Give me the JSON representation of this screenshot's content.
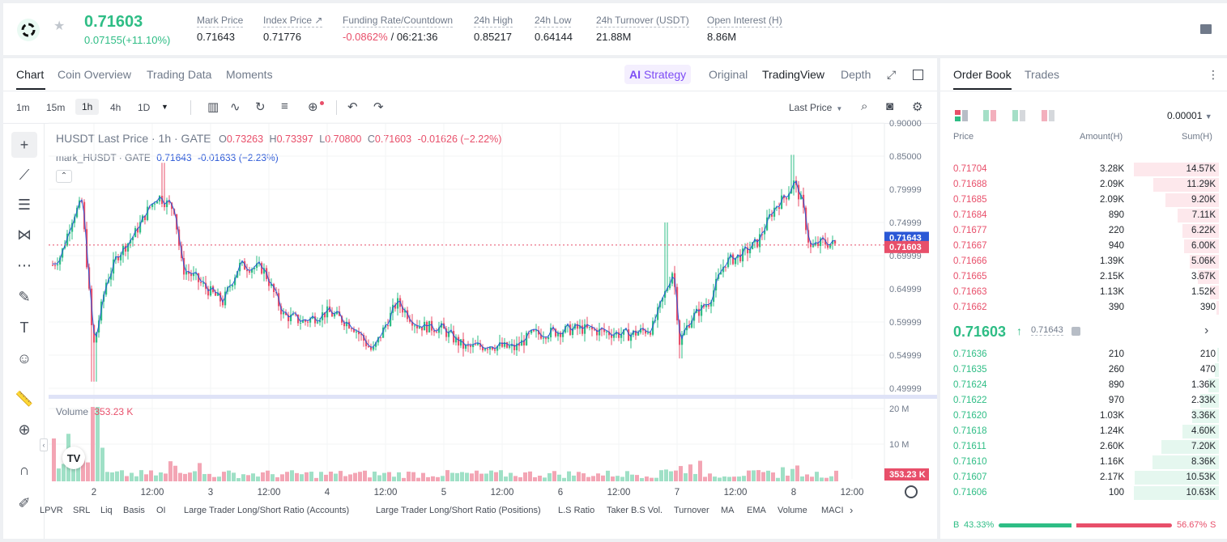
{
  "header": {
    "price": "0.71603",
    "change": "0.07155(+11.10%)",
    "stats": [
      {
        "label": "Mark Price",
        "value": "0.71643"
      },
      {
        "label": "Index Price ↗",
        "value": "0.71776"
      },
      {
        "label": "Funding Rate/Countdown",
        "value": "-0.0862%",
        "value2": "/ 06:21:36"
      },
      {
        "label": "24h High",
        "value": "0.85217"
      },
      {
        "label": "24h Low",
        "value": "0.64144"
      },
      {
        "label": "24h Turnover (USDT)",
        "value": "21.88M"
      },
      {
        "label": "Open Interest (H)",
        "value": "8.86M"
      }
    ]
  },
  "chart_tabs": {
    "left": [
      "Chart",
      "Coin Overview",
      "Trading Data",
      "Moments"
    ],
    "strategy": "Strategy",
    "right": [
      "Original",
      "TradingView",
      "Depth"
    ]
  },
  "toolbar": {
    "intervals": [
      "1m",
      "15m",
      "1h",
      "4h",
      "1D"
    ],
    "last_price": "Last Price"
  },
  "legend": {
    "line1_prefix": "HUSDT Last Price · 1h · GATE",
    "O": "0.73263",
    "H": "0.73397",
    "L": "0.70800",
    "C": "0.71603",
    "chg": "-0.01626 (−2.22%)",
    "line2_prefix": "mark_HUSDT · GATE",
    "mark_val": "0.71643",
    "mark_chg": "-0.01633 (−2.23%)"
  },
  "price_axis": [
    "0.90000",
    "0.85000",
    "0.79999",
    "0.74999",
    "0.69999",
    "0.64999",
    "0.59999",
    "0.54999",
    "0.49999"
  ],
  "price_tags": {
    "mark": "0.71643",
    "last": "0.71603"
  },
  "volume": {
    "label": "Volume",
    "value": "353.23 K",
    "axis": [
      "20 M",
      "10 M"
    ],
    "tag": "353.23 K"
  },
  "time_axis": [
    "2",
    "12:00",
    "3",
    "12:00",
    "4",
    "12:00",
    "5",
    "12:00",
    "6",
    "12:00",
    "7",
    "12:00",
    "8",
    "12:00"
  ],
  "bottom_indicators": [
    "LPVR",
    "SRL",
    "Liq",
    "Basis",
    "OI",
    "Large Trader Long/Short Ratio (Accounts)",
    "Large Trader Long/Short Ratio (Positions)",
    "L.S Ratio",
    "Taker B.S Vol.",
    "Turnover",
    "MA",
    "EMA",
    "Volume",
    "MACI"
  ],
  "orderbook": {
    "tabs": [
      "Order Book",
      "Trades"
    ],
    "precision": "0.00001",
    "headers": [
      "Price",
      "Amount(H)",
      "Sum(H)"
    ],
    "asks": [
      {
        "price": "0.71704",
        "amount": "3.28K",
        "sum": "14.57K",
        "depth": 1.0
      },
      {
        "price": "0.71688",
        "amount": "2.09K",
        "sum": "11.29K",
        "depth": 0.775
      },
      {
        "price": "0.71685",
        "amount": "2.09K",
        "sum": "9.20K",
        "depth": 0.631
      },
      {
        "price": "0.71684",
        "amount": "890",
        "sum": "7.11K",
        "depth": 0.488
      },
      {
        "price": "0.71677",
        "amount": "220",
        "sum": "6.22K",
        "depth": 0.427
      },
      {
        "price": "0.71667",
        "amount": "940",
        "sum": "6.00K",
        "depth": 0.412
      },
      {
        "price": "0.71666",
        "amount": "1.39K",
        "sum": "5.06K",
        "depth": 0.347
      },
      {
        "price": "0.71665",
        "amount": "2.15K",
        "sum": "3.67K",
        "depth": 0.252
      },
      {
        "price": "0.71663",
        "amount": "1.13K",
        "sum": "1.52K",
        "depth": 0.104
      },
      {
        "price": "0.71662",
        "amount": "390",
        "sum": "390",
        "depth": 0.027
      }
    ],
    "mid_price": "0.71603",
    "mid_mark": "0.71643",
    "bids": [
      {
        "price": "0.71636",
        "amount": "210",
        "sum": "210",
        "depth": 0.02
      },
      {
        "price": "0.71635",
        "amount": "260",
        "sum": "470",
        "depth": 0.044
      },
      {
        "price": "0.71624",
        "amount": "890",
        "sum": "1.36K",
        "depth": 0.128
      },
      {
        "price": "0.71622",
        "amount": "970",
        "sum": "2.33K",
        "depth": 0.219
      },
      {
        "price": "0.71620",
        "amount": "1.03K",
        "sum": "3.36K",
        "depth": 0.316
      },
      {
        "price": "0.71618",
        "amount": "1.24K",
        "sum": "4.60K",
        "depth": 0.432
      },
      {
        "price": "0.71611",
        "amount": "2.60K",
        "sum": "7.20K",
        "depth": 0.676
      },
      {
        "price": "0.71610",
        "amount": "1.16K",
        "sum": "8.36K",
        "depth": 0.785
      },
      {
        "price": "0.71607",
        "amount": "2.17K",
        "sum": "10.53K",
        "depth": 0.989
      },
      {
        "price": "0.71606",
        "amount": "100",
        "sum": "10.63K",
        "depth": 1.0
      }
    ],
    "buy_pct": "43.33%",
    "sell_pct": "56.67%",
    "buy_ratio": 0.4333,
    "buy_letter": "B",
    "sell_letter": "S"
  },
  "colors": {
    "up": "#2ebd85",
    "down": "#e84f6a",
    "accent": "#7d4cf5",
    "mark": "#2a58d6"
  }
}
